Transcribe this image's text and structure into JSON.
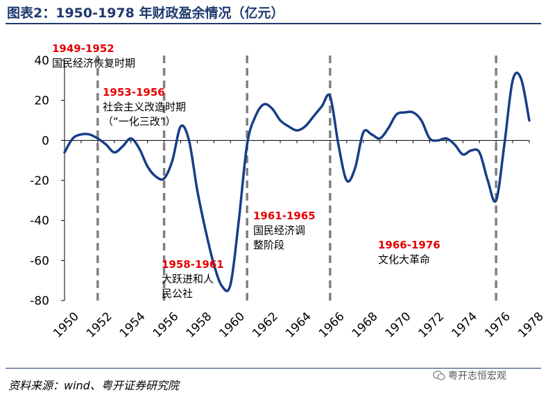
{
  "title": "图表2：1950-1978 年财政盈余情况（亿元）",
  "source": "资料来源：wind、粤开证券研究院",
  "watermark": "粤开志恒宏观",
  "colors": {
    "line": "#173d86",
    "period_year": "#e60000",
    "divider": "#808080",
    "title": "#1f3a6e"
  },
  "chart_data": {
    "type": "line",
    "title": "图表2：1950-1978 年财政盈余情况（亿元）",
    "xlabel": "",
    "ylabel": "",
    "xlim": [
      1950,
      1978
    ],
    "ylim": [
      -80,
      40
    ],
    "x_ticks": [
      "1950",
      "1952",
      "1954",
      "1956",
      "1958",
      "1960",
      "1962",
      "1964",
      "1966",
      "1968",
      "1970",
      "1972",
      "1974",
      "1976",
      "1978"
    ],
    "y_ticks": [
      "40",
      "20",
      "0",
      "-20",
      "-40",
      "-60",
      "-80"
    ],
    "grid": false,
    "series": [
      {
        "name": "",
        "x": [
          1950,
          1950.5,
          1951,
          1951.5,
          1952,
          1952.5,
          1953,
          1953.5,
          1954,
          1954.5,
          1955,
          1955.5,
          1956,
          1956.5,
          1957,
          1957.5,
          1958,
          1958.5,
          1959,
          1959.5,
          1960,
          1960.5,
          1961,
          1961.5,
          1962,
          1962.5,
          1963,
          1963.5,
          1964,
          1964.5,
          1965,
          1965.5,
          1966,
          1966.5,
          1967,
          1967.5,
          1968,
          1968.5,
          1969,
          1969.5,
          1970,
          1970.5,
          1971,
          1971.5,
          1972,
          1972.5,
          1973,
          1973.5,
          1974,
          1974.5,
          1975,
          1975.5,
          1976,
          1976.5,
          1977,
          1977.5,
          1978
        ],
        "values": [
          -6,
          1,
          3,
          3,
          1,
          -2,
          -6,
          -3,
          1,
          -4,
          -13,
          -18,
          -19,
          -10,
          7,
          0,
          -25,
          -45,
          -62,
          -73,
          -72,
          -40,
          -2,
          12,
          18,
          16,
          10,
          7,
          5,
          7,
          12,
          17,
          22,
          -2,
          -20,
          -14,
          4,
          3,
          1,
          6,
          13,
          14,
          14,
          10,
          1,
          0,
          1,
          -2,
          -7,
          -5,
          -6,
          -20,
          -30,
          -2,
          30,
          31,
          10
        ]
      }
    ],
    "period_dividers": [
      1952,
      1956,
      1961,
      1966,
      1976
    ],
    "annotations": [
      {
        "years": "1949-1952",
        "label": "国民经济恢复时期"
      },
      {
        "years": "1953-1956",
        "label": "社会主义改造时期",
        "label2": "（“一化三改”）"
      },
      {
        "years": "1958-1961",
        "label": "大跃进和人",
        "label2": "民公社"
      },
      {
        "years": "1961-1965",
        "label": "国民经济调",
        "label2": "整阶段"
      },
      {
        "years": "1966-1976",
        "label": "文化大革命"
      }
    ]
  }
}
